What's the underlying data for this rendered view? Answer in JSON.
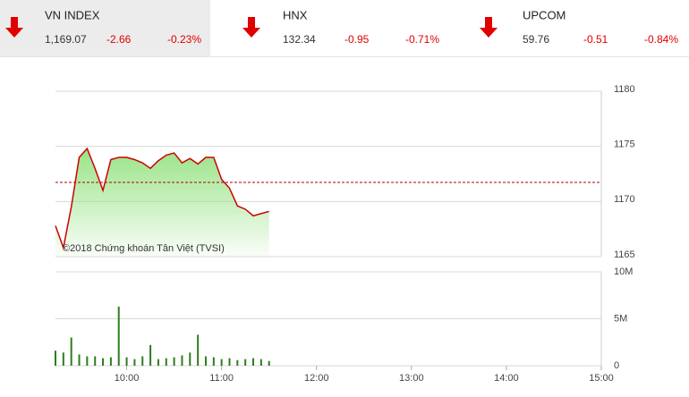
{
  "header": {
    "indices": [
      {
        "name": "VN INDEX",
        "value": "1,169.07",
        "change": "-2.66",
        "percent": "-0.23%"
      },
      {
        "name": "HNX",
        "value": "132.34",
        "change": "-0.95",
        "percent": "-0.71%"
      },
      {
        "name": "UPCOM",
        "value": "59.76",
        "change": "-0.51",
        "percent": "-0.84%"
      }
    ]
  },
  "chart_data": [
    {
      "type": "line",
      "watermark": "©2018 Chứng khoán Tân Việt (TVSI)",
      "x": [
        "09:15",
        "09:20",
        "09:25",
        "09:30",
        "09:35",
        "09:40",
        "09:45",
        "09:50",
        "09:55",
        "10:00",
        "10:05",
        "10:10",
        "10:15",
        "10:20",
        "10:25",
        "10:30",
        "10:35",
        "10:40",
        "10:45",
        "10:50",
        "10:55",
        "11:00",
        "11:05",
        "11:10",
        "11:15",
        "11:20",
        "11:25",
        "11:30"
      ],
      "values": [
        1167.8,
        1165.8,
        1169.5,
        1174.0,
        1174.8,
        1173.0,
        1171.0,
        1173.8,
        1174.0,
        1174.0,
        1173.8,
        1173.5,
        1173.0,
        1173.7,
        1174.2,
        1174.4,
        1173.5,
        1173.9,
        1173.4,
        1174.0,
        1174.0,
        1172.0,
        1171.2,
        1169.6,
        1169.3,
        1168.7,
        1168.9,
        1169.1
      ],
      "color": "#cc0000",
      "fill_color": "#8ee07a",
      "reference": 1171.73,
      "reference_color": "#b00000",
      "xlim": [
        "09:15",
        "15:00"
      ],
      "ylim": [
        1165,
        1180
      ],
      "yticks": [
        1165,
        1170,
        1175,
        1180
      ],
      "grid": true
    },
    {
      "type": "bar",
      "x": [
        "09:15",
        "09:20",
        "09:25",
        "09:30",
        "09:35",
        "09:40",
        "09:45",
        "09:50",
        "09:55",
        "10:00",
        "10:05",
        "10:10",
        "10:15",
        "10:20",
        "10:25",
        "10:30",
        "10:35",
        "10:40",
        "10:45",
        "10:50",
        "10:55",
        "11:00",
        "11:05",
        "11:10",
        "11:15",
        "11:20",
        "11:25",
        "11:30"
      ],
      "values": [
        1600000,
        1400000,
        3000000,
        1200000,
        1000000,
        1000000,
        800000,
        900000,
        6300000,
        900000,
        700000,
        1000000,
        2200000,
        700000,
        800000,
        900000,
        1100000,
        1400000,
        3300000,
        1000000,
        900000,
        700000,
        800000,
        600000,
        700000,
        800000,
        700000,
        500000
      ],
      "color": "#2e7d1e",
      "xlim": [
        "09:15",
        "15:00"
      ],
      "xticks": [
        "10:00",
        "11:00",
        "12:00",
        "13:00",
        "14:00",
        "15:00"
      ],
      "ylim": [
        0,
        10000000
      ],
      "yticks": [
        {
          "value": 0,
          "label": "0"
        },
        {
          "value": 5000000,
          "label": "5M"
        },
        {
          "value": 10000000,
          "label": "10M"
        }
      ],
      "grid": true
    }
  ]
}
